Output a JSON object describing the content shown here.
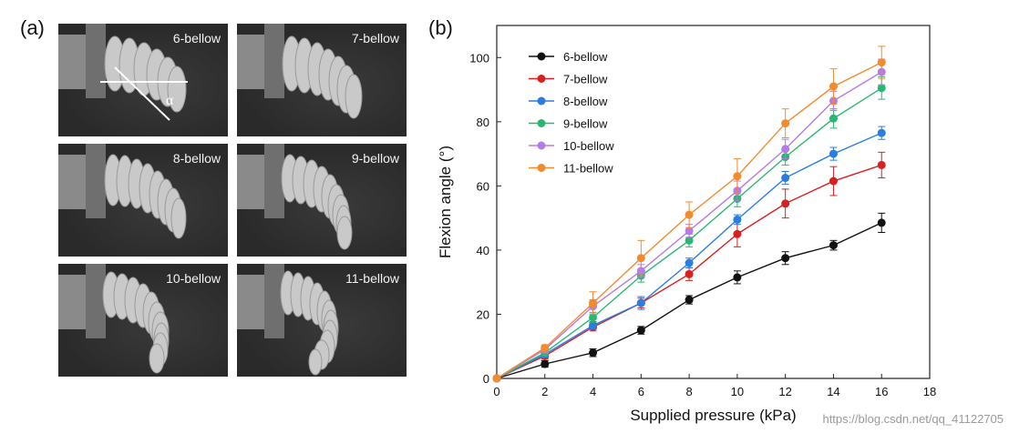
{
  "panels": {
    "a_label": "(a)",
    "b_label": "(b)"
  },
  "photos": [
    {
      "caption": "6-bellow",
      "alpha": "α"
    },
    {
      "caption": "7-bellow"
    },
    {
      "caption": "8-bellow"
    },
    {
      "caption": "9-bellow"
    },
    {
      "caption": "10-bellow"
    },
    {
      "caption": "11-bellow"
    }
  ],
  "watermark": "https://blog.csdn.net/qq_41122705",
  "chart_data": {
    "type": "line",
    "xlabel": "Supplied pressure (kPa)",
    "ylabel": "Flexion angle (°)",
    "xlim": [
      0,
      18
    ],
    "ylim": [
      0,
      110
    ],
    "xticks": [
      0,
      2,
      4,
      6,
      8,
      10,
      12,
      14,
      16,
      18
    ],
    "yticks": [
      0,
      20,
      40,
      60,
      80,
      100
    ],
    "legend_position": "top-left",
    "x": [
      0,
      2,
      4,
      6,
      8,
      10,
      12,
      14,
      16
    ],
    "series": [
      {
        "name": "6-bellow",
        "color": "#111111",
        "values": [
          0,
          4.5,
          8,
          15,
          24.5,
          31.5,
          37.5,
          41.5,
          48.5
        ],
        "errors": [
          0,
          1,
          1.2,
          1.2,
          1.3,
          2,
          2,
          1.5,
          3
        ]
      },
      {
        "name": "7-bellow",
        "color": "#d92020",
        "values": [
          0,
          7,
          16,
          23.5,
          32.5,
          45,
          54.5,
          61.5,
          66.5
        ],
        "errors": [
          0,
          1,
          1.2,
          1.5,
          2,
          4,
          4.5,
          4.5,
          4
        ]
      },
      {
        "name": "8-bellow",
        "color": "#2a7de1",
        "values": [
          0,
          7.5,
          16.5,
          23.5,
          36,
          49.5,
          62.5,
          70,
          76.5
        ],
        "errors": [
          0,
          1,
          1.2,
          2,
          1.5,
          1.5,
          2,
          2,
          2
        ]
      },
      {
        "name": "9-bellow",
        "color": "#2bb673",
        "values": [
          0,
          8,
          19,
          32,
          43,
          56,
          69,
          81,
          90.5
        ],
        "errors": [
          0,
          1,
          1.5,
          2,
          2,
          2.5,
          2.5,
          3,
          3.5
        ]
      },
      {
        "name": "10-bellow",
        "color": "#b57be8",
        "values": [
          0,
          9,
          22.5,
          33.5,
          46,
          58.5,
          71.5,
          86.5,
          95.5
        ],
        "errors": [
          0,
          1,
          2,
          2,
          2,
          3,
          3,
          3,
          4
        ]
      },
      {
        "name": "11-bellow",
        "color": "#f28a2e",
        "values": [
          0,
          9.5,
          23.5,
          37.5,
          51,
          63,
          79.5,
          91,
          98.5
        ],
        "errors": [
          0,
          1,
          3.5,
          5.5,
          4,
          5.5,
          4.5,
          5.5,
          5
        ]
      }
    ]
  }
}
